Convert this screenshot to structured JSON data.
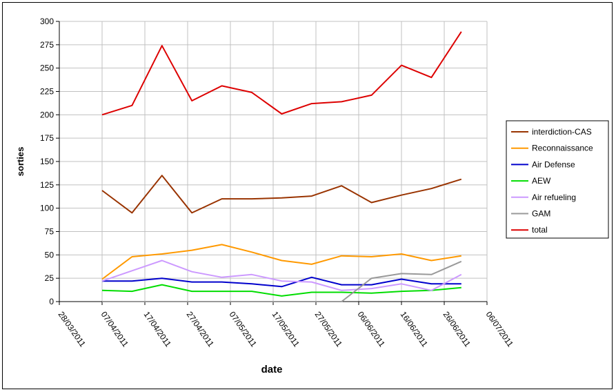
{
  "chart_data": {
    "type": "line",
    "title": "",
    "xlabel": "date",
    "ylabel": "sorties",
    "ylim": [
      0,
      300
    ],
    "yticks": [
      0,
      25,
      50,
      75,
      100,
      125,
      150,
      175,
      200,
      225,
      250,
      275,
      300
    ],
    "xlim": [
      "28/03/2011",
      "06/07/2011"
    ],
    "xticks": [
      "28/03/2011",
      "07/04/2011",
      "17/04/2011",
      "27/04/2011",
      "07/05/2011",
      "17/05/2011",
      "27/05/2011",
      "06/06/2011",
      "16/06/2011",
      "26/06/2011",
      "06/07/2011"
    ],
    "grid": true,
    "legend_position": "right",
    "x": [
      "07/04/2011",
      "14/04/2011",
      "21/04/2011",
      "28/04/2011",
      "05/05/2011",
      "12/05/2011",
      "19/05/2011",
      "26/05/2011",
      "02/06/2011",
      "09/06/2011",
      "16/06/2011",
      "23/06/2011",
      "30/06/2011"
    ],
    "series": [
      {
        "name": "interdiction-CAS",
        "color": "#993300",
        "values": [
          119,
          95,
          135,
          95,
          110,
          110,
          111,
          113,
          124,
          106,
          114,
          121,
          131
        ]
      },
      {
        "name": "Reconnaissance",
        "color": "#ff9900",
        "values": [
          24,
          48,
          51,
          55,
          61,
          53,
          44,
          40,
          49,
          48,
          51,
          44,
          49
        ]
      },
      {
        "name": "Air Defense",
        "color": "#0000cc",
        "values": [
          22,
          22,
          25,
          21,
          21,
          19,
          16,
          26,
          18,
          18,
          24,
          19,
          19
        ]
      },
      {
        "name": "AEW",
        "color": "#00dd00",
        "values": [
          12,
          11,
          18,
          11,
          11,
          11,
          6,
          10,
          10,
          9,
          11,
          12,
          15
        ]
      },
      {
        "name": "Air refueling",
        "color": "#cc99ff",
        "values": [
          22,
          33,
          44,
          32,
          26,
          29,
          22,
          21,
          12,
          14,
          19,
          12,
          29
        ]
      },
      {
        "name": "GAM",
        "color": "#999999",
        "values": [
          0,
          0,
          0,
          0,
          0,
          0,
          0,
          0,
          0,
          25,
          30,
          29,
          43
        ]
      },
      {
        "name": "total",
        "color": "#dd0000",
        "values": [
          200,
          210,
          274,
          215,
          231,
          224,
          201,
          212,
          214,
          221,
          253,
          240,
          289
        ]
      }
    ]
  }
}
